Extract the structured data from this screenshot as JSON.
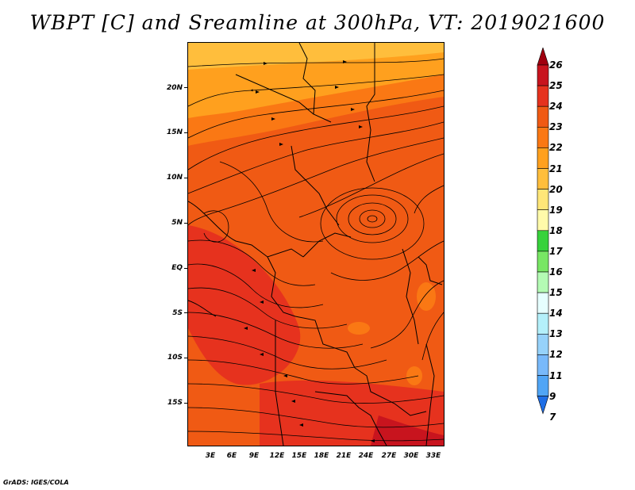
{
  "title": "WBPT [C] and Sreamline at 300hPa, VT: 2019021600",
  "footer": "GrADS: IGES/COLA",
  "map": {
    "variable": "WBPT [C] and Streamline at 300hPa",
    "lat_labels": [
      "20N",
      "15N",
      "10N",
      "5N",
      "EQ",
      "5S",
      "10S",
      "15S"
    ],
    "lon_labels": [
      "3E",
      "6E",
      "9E",
      "12E",
      "15E",
      "18E",
      "21E",
      "24E",
      "27E",
      "30E",
      "33E"
    ]
  },
  "colorbar": {
    "labels": [
      "26",
      "25",
      "24",
      "23",
      "22",
      "21",
      "20",
      "19",
      "18",
      "17",
      "16",
      "15",
      "14",
      "13",
      "12",
      "11",
      "9",
      "7"
    ],
    "colors": [
      "#a0000f",
      "#c8141e",
      "#e6321e",
      "#f05a14",
      "#fa7814",
      "#ffa01e",
      "#ffbe3c",
      "#ffe678",
      "#fffaaa",
      "#37d23c",
      "#78e664",
      "#b4fab4",
      "#e6ffff",
      "#b4f0fa",
      "#96d2fa",
      "#78b9fa",
      "#50a5f5",
      "#1e6ee6"
    ]
  }
}
